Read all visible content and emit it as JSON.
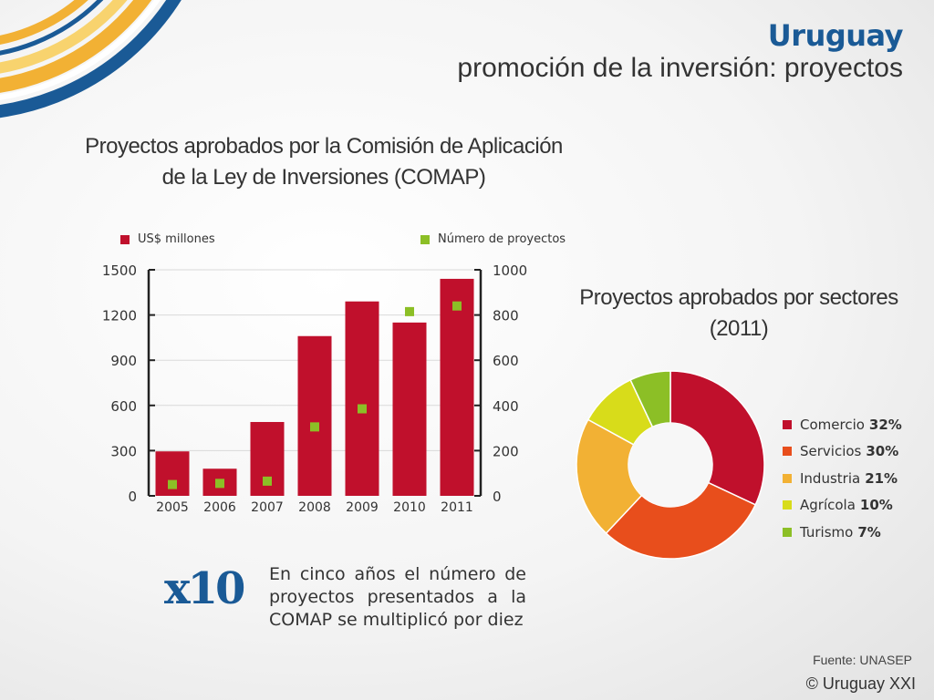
{
  "header": {
    "country": "Uruguay",
    "subtitle": "promoción de la inversión: proyectos"
  },
  "bar_chart": {
    "title_line1": "Proyectos aprobados por la Comisión de Aplicación",
    "title_line2": "de la Ley de Inversiones (COMAP)",
    "legend_usd": "US$ millones",
    "legend_projects": "Número de proyectos"
  },
  "pie_chart": {
    "title_line1": "Proyectos aprobados por sectores",
    "title_line2": "(2011)"
  },
  "callout": {
    "big": "x10",
    "lines": [
      "En cinco años el número de",
      "proyectos presentados a la",
      "COMAP se multiplicó por diez"
    ]
  },
  "footer": {
    "source": "Fuente: UNASEP",
    "copyright": "© Uruguay XXI"
  },
  "colors": {
    "bar": "#c0102c",
    "marker": "#8cbf26",
    "brand_blue": "#1a5a96",
    "comercio": "#c0102c",
    "servicios": "#e84e1c",
    "industria": "#f2b134",
    "agricola": "#d8dc1a",
    "turismo": "#8cbf26"
  },
  "chart_data": [
    {
      "type": "bar",
      "categories": [
        "2005",
        "2006",
        "2007",
        "2008",
        "2009",
        "2010",
        "2011"
      ],
      "series": [
        {
          "name": "US$ millones",
          "axis": "left",
          "kind": "bar",
          "values": [
            295,
            180,
            490,
            1060,
            1290,
            1150,
            1440
          ]
        },
        {
          "name": "Número de proyectos",
          "axis": "right",
          "kind": "marker",
          "values": [
            50,
            55,
            65,
            305,
            385,
            815,
            840
          ]
        }
      ],
      "y_left": {
        "range": [
          0,
          1500
        ],
        "ticks": [
          "0",
          "300",
          "600",
          "900",
          "1200",
          "1500"
        ]
      },
      "y_right": {
        "range": [
          0,
          1000
        ],
        "ticks": [
          "0",
          "200",
          "400",
          "600",
          "800",
          "1000"
        ]
      },
      "grid": true,
      "legend": "top"
    },
    {
      "type": "pie",
      "style": "donut",
      "slices": [
        {
          "label": "Comercio",
          "value": 32,
          "display": "32%"
        },
        {
          "label": "Servicios",
          "value": 30,
          "display": "30%"
        },
        {
          "label": "Industria",
          "value": 21,
          "display": "21%"
        },
        {
          "label": "Agrícola",
          "value": 10,
          "display": "10%"
        },
        {
          "label": "Turismo",
          "value": 7,
          "display": "7%"
        }
      ],
      "legend": "right"
    }
  ]
}
